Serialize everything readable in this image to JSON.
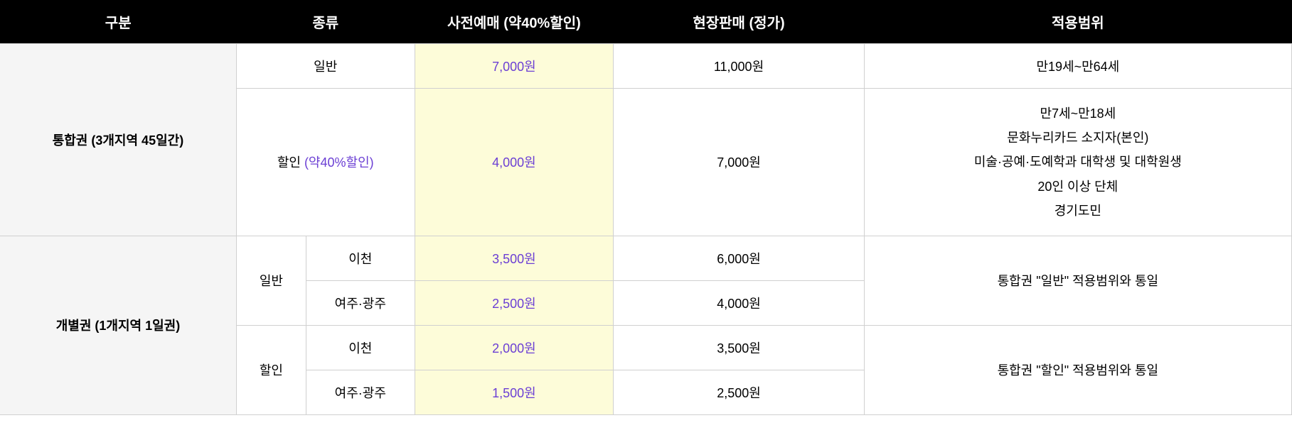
{
  "headers": {
    "category": "구분",
    "type": "종류",
    "presale": "사전예매 (약40%할인)",
    "onsite": "현장판매 (정가)",
    "scope": "적용범위"
  },
  "section1": {
    "title": "통합권 (3개지역 45일간)",
    "row1": {
      "type": "일반",
      "presale": "7,000원",
      "onsite": "11,000원",
      "scope": "만19세~만64세"
    },
    "row2": {
      "typePrefix": "할인 ",
      "typeNote": "(약40%할인)",
      "presale": "4,000원",
      "onsite": "7,000원",
      "scopeLine1": "만7세~만18세",
      "scopeLine2": "문화누리카드 소지자(본인)",
      "scopeLine3": "미술·공예·도예학과 대학생 및 대학원생",
      "scopeLine4": "20인 이상 단체",
      "scopeLine5": "경기도민"
    }
  },
  "section2": {
    "title": "개별권 (1개지역 1일권)",
    "groupA": {
      "label": "일반",
      "row1": {
        "sub": "이천",
        "presale": "3,500원",
        "onsite": "6,000원"
      },
      "row2": {
        "sub": "여주·광주",
        "presale": "2,500원",
        "onsite": "4,000원"
      },
      "scope": "통합권 \"일반\" 적용범위와 통일"
    },
    "groupB": {
      "label": "할인",
      "row1": {
        "sub": "이천",
        "presale": "2,000원",
        "onsite": "3,500원"
      },
      "row2": {
        "sub": "여주·광주",
        "presale": "1,500원",
        "onsite": "2,500원"
      },
      "scope": "통합권 \"할인\" 적용범위와 통일"
    }
  }
}
